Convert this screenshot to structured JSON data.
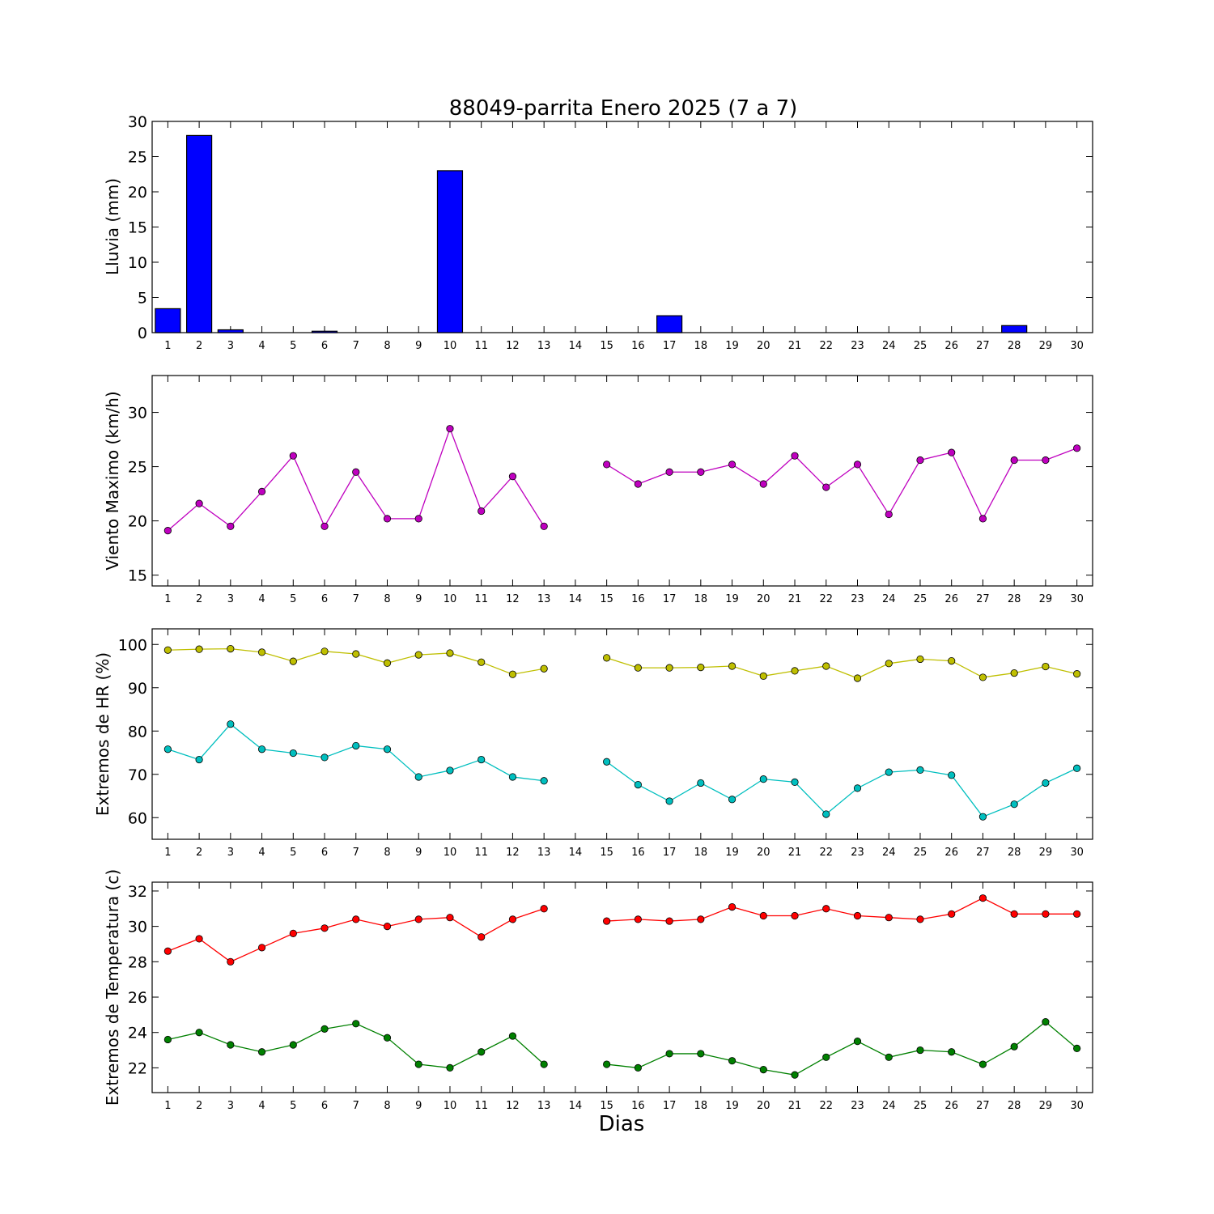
{
  "chart_data": [
    {
      "type": "bar",
      "title": "88049-parrita Enero 2025  (7 a 7)",
      "ylabel": "Lluvia (mm)",
      "xlabel": "",
      "x": [
        1,
        2,
        3,
        4,
        5,
        6,
        7,
        8,
        9,
        10,
        11,
        12,
        13,
        14,
        15,
        16,
        17,
        18,
        19,
        20,
        21,
        22,
        23,
        24,
        25,
        26,
        27,
        28,
        29,
        30
      ],
      "ylim": [
        0,
        30
      ],
      "yticks": [
        0,
        5,
        10,
        15,
        20,
        25,
        30
      ],
      "series": [
        {
          "values": [
            3.4,
            28.0,
            0.4,
            0,
            0,
            0.2,
            0,
            0,
            0,
            23.0,
            0,
            0,
            0,
            0,
            0,
            0,
            2.4,
            0,
            0,
            0,
            0,
            0,
            0,
            0,
            0,
            0,
            0,
            1.0,
            0,
            0
          ],
          "color": "#0000ff"
        }
      ],
      "grid": false
    },
    {
      "type": "line",
      "ylabel": "Viento Maximo (km/h)",
      "xlabel": "",
      "x": [
        1,
        2,
        3,
        4,
        5,
        6,
        7,
        8,
        9,
        10,
        11,
        12,
        13,
        14,
        15,
        16,
        17,
        18,
        19,
        20,
        21,
        22,
        23,
        24,
        25,
        26,
        27,
        28,
        29,
        30
      ],
      "ylim": [
        14.0,
        33.4
      ],
      "yticks": [
        15,
        20,
        25,
        30
      ],
      "series": [
        {
          "values": [
            19.1,
            21.6,
            19.5,
            22.7,
            26.0,
            19.5,
            24.5,
            20.2,
            20.2,
            28.5,
            20.9,
            24.1,
            19.5,
            null,
            25.2,
            23.4,
            24.5,
            24.5,
            25.2,
            23.4,
            26.0,
            23.1,
            25.2,
            20.6,
            25.6,
            26.3,
            20.2,
            25.6,
            25.6,
            26.7
          ],
          "color": "#bf00bf"
        }
      ],
      "grid": false
    },
    {
      "type": "line",
      "ylabel": "Extremos de HR (%)",
      "xlabel": "",
      "x": [
        1,
        2,
        3,
        4,
        5,
        6,
        7,
        8,
        9,
        10,
        11,
        12,
        13,
        14,
        15,
        16,
        17,
        18,
        19,
        20,
        21,
        22,
        23,
        24,
        25,
        26,
        27,
        28,
        29,
        30
      ],
      "ylim": [
        55.0,
        103.6
      ],
      "yticks": [
        60,
        70,
        80,
        90,
        100
      ],
      "series": [
        {
          "values": [
            98.7,
            98.9,
            99.0,
            98.2,
            96.1,
            98.4,
            97.8,
            95.7,
            97.6,
            98.0,
            95.9,
            93.1,
            94.4,
            null,
            96.9,
            94.6,
            94.6,
            94.7,
            95.0,
            92.7,
            93.9,
            95.0,
            92.2,
            95.6,
            96.6,
            96.2,
            92.4,
            93.4,
            94.9,
            93.2
          ],
          "color": "#bfbf00"
        },
        {
          "values": [
            75.8,
            73.4,
            81.6,
            75.8,
            74.9,
            73.9,
            76.6,
            75.8,
            69.4,
            70.9,
            73.4,
            69.4,
            68.5,
            null,
            72.9,
            67.6,
            63.8,
            68.0,
            64.2,
            68.9,
            68.2,
            60.8,
            66.8,
            70.5,
            71.0,
            69.8,
            60.2,
            63.1,
            68.0,
            71.4
          ],
          "color": "#00bfbf"
        }
      ],
      "grid": false
    },
    {
      "type": "line",
      "ylabel": "Extremos de Temperatura (c)",
      "xlabel": "Dias",
      "x": [
        1,
        2,
        3,
        4,
        5,
        6,
        7,
        8,
        9,
        10,
        11,
        12,
        13,
        14,
        15,
        16,
        17,
        18,
        19,
        20,
        21,
        22,
        23,
        24,
        25,
        26,
        27,
        28,
        29,
        30
      ],
      "ylim": [
        20.6,
        32.5
      ],
      "yticks": [
        22,
        24,
        26,
        28,
        30,
        32
      ],
      "series": [
        {
          "values": [
            28.6,
            29.3,
            28.0,
            28.8,
            29.6,
            29.9,
            30.4,
            30.0,
            30.4,
            30.5,
            29.4,
            30.4,
            31.0,
            null,
            30.3,
            30.4,
            30.3,
            30.4,
            31.1,
            30.6,
            30.6,
            31.0,
            30.6,
            30.5,
            30.4,
            30.7,
            31.6,
            30.7,
            30.7,
            30.7
          ],
          "color": "#ff0000"
        },
        {
          "values": [
            23.6,
            24.0,
            23.3,
            22.9,
            23.3,
            24.2,
            24.5,
            23.7,
            22.2,
            22.0,
            22.9,
            23.8,
            22.2,
            null,
            22.2,
            22.0,
            22.8,
            22.8,
            22.4,
            21.9,
            21.6,
            22.6,
            23.5,
            22.6,
            23.0,
            22.9,
            22.2,
            23.2,
            24.6,
            23.1
          ],
          "color": "#008000"
        }
      ],
      "grid": false
    }
  ]
}
